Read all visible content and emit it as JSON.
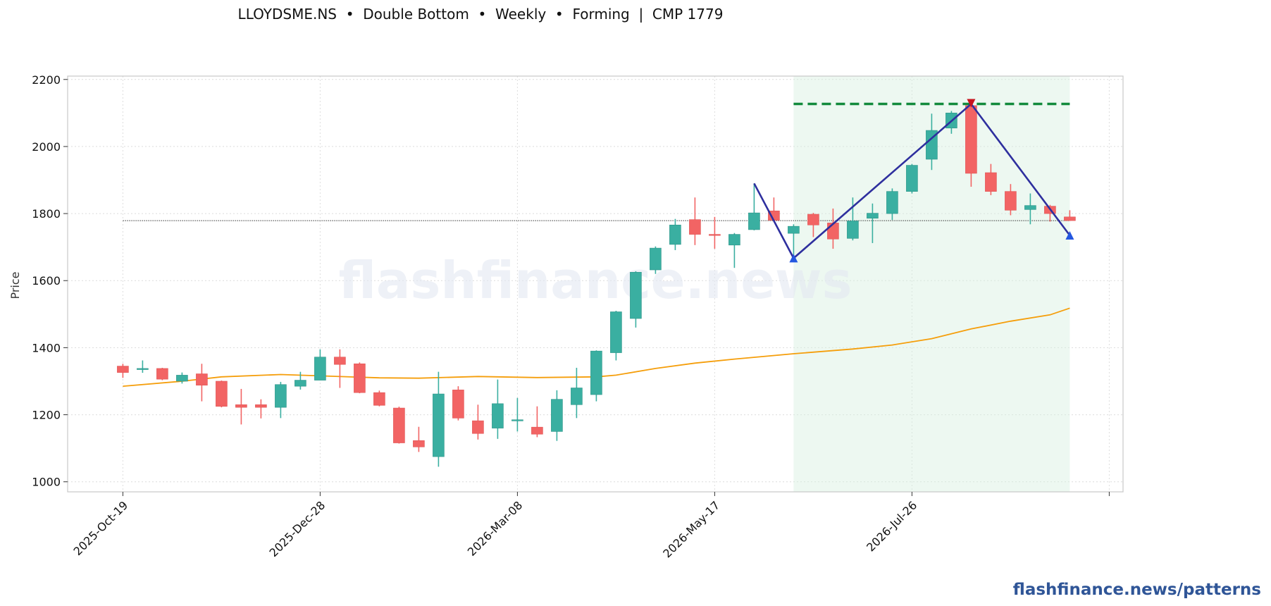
{
  "header": {
    "title": "LLOYDSME.NS  •  Double Bottom  •  Weekly  •  Forming  |  CMP 1779"
  },
  "footer": {
    "brand": "flashfinance.news/patterns"
  },
  "watermark": "flashfinance.news",
  "colors": {
    "up": "#3aafa1",
    "down": "#f26464",
    "ma": "#f59e0b",
    "pattern": "#2e2f9e",
    "neckline": "#138a3c",
    "zone": "#d8efe1",
    "bottom_marker": "#2457e0",
    "top_marker": "#c8141e"
  },
  "chart_data": {
    "type": "candlestick",
    "title": "LLOYDSME.NS  •  Double Bottom  •  Weekly  •  Forming  |  CMP 1779",
    "ylabel": "Price",
    "ylim": [
      970,
      2210
    ],
    "yticks": [
      1000,
      1200,
      1400,
      1600,
      1800,
      2000,
      2200
    ],
    "xtick_labels": [
      "2025-Oct-19",
      "2025-Dec-28",
      "2026-Mar-08",
      "2026-May-17",
      "2026-Jul-26"
    ],
    "xtick_index": [
      0,
      10,
      20,
      30,
      40
    ],
    "x_range": [
      -2.8,
      50.7
    ],
    "grid": true,
    "candles": [
      {
        "date": "2025-Oct-19",
        "o": 1345,
        "h": 1352,
        "l": 1310,
        "c": 1326
      },
      {
        "date": "2025-Oct-26",
        "o": 1336,
        "h": 1362,
        "l": 1325,
        "c": 1338
      },
      {
        "date": "2025-Nov-02",
        "o": 1338,
        "h": 1340,
        "l": 1303,
        "c": 1306
      },
      {
        "date": "2025-Nov-09",
        "o": 1300,
        "h": 1326,
        "l": 1293,
        "c": 1318
      },
      {
        "date": "2025-Nov-16",
        "o": 1322,
        "h": 1352,
        "l": 1240,
        "c": 1288
      },
      {
        "date": "2025-Nov-23",
        "o": 1300,
        "h": 1302,
        "l": 1222,
        "c": 1225
      },
      {
        "date": "2025-Nov-30",
        "o": 1230,
        "h": 1277,
        "l": 1171,
        "c": 1222
      },
      {
        "date": "2025-Dec-07",
        "o": 1230,
        "h": 1246,
        "l": 1189,
        "c": 1222
      },
      {
        "date": "2025-Dec-14",
        "o": 1222,
        "h": 1298,
        "l": 1190,
        "c": 1290
      },
      {
        "date": "2025-Dec-21",
        "o": 1285,
        "h": 1328,
        "l": 1275,
        "c": 1303
      },
      {
        "date": "2025-Dec-28",
        "o": 1303,
        "h": 1395,
        "l": 1303,
        "c": 1372
      },
      {
        "date": "2026-Jan-04",
        "o": 1372,
        "h": 1395,
        "l": 1280,
        "c": 1350
      },
      {
        "date": "2026-Jan-11",
        "o": 1352,
        "h": 1356,
        "l": 1264,
        "c": 1266
      },
      {
        "date": "2026-Jan-18",
        "o": 1266,
        "h": 1272,
        "l": 1225,
        "c": 1228
      },
      {
        "date": "2026-Jan-25",
        "o": 1220,
        "h": 1224,
        "l": 1114,
        "c": 1116
      },
      {
        "date": "2026-Feb-01",
        "o": 1123,
        "h": 1164,
        "l": 1089,
        "c": 1104
      },
      {
        "date": "2026-Feb-08",
        "o": 1075,
        "h": 1328,
        "l": 1045,
        "c": 1262
      },
      {
        "date": "2026-Feb-15",
        "o": 1274,
        "h": 1285,
        "l": 1183,
        "c": 1190
      },
      {
        "date": "2026-Feb-22",
        "o": 1182,
        "h": 1230,
        "l": 1126,
        "c": 1144
      },
      {
        "date": "2026-Mar-01",
        "o": 1160,
        "h": 1305,
        "l": 1128,
        "c": 1233
      },
      {
        "date": "2026-Mar-08",
        "o": 1184,
        "h": 1250,
        "l": 1150,
        "c": 1185
      },
      {
        "date": "2026-Mar-15",
        "o": 1163,
        "h": 1225,
        "l": 1133,
        "c": 1142
      },
      {
        "date": "2026-Mar-22",
        "o": 1150,
        "h": 1273,
        "l": 1122,
        "c": 1246
      },
      {
        "date": "2026-Mar-29",
        "o": 1230,
        "h": 1340,
        "l": 1190,
        "c": 1280
      },
      {
        "date": "2026-Apr-05",
        "o": 1260,
        "h": 1392,
        "l": 1240,
        "c": 1390
      },
      {
        "date": "2026-Apr-12",
        "o": 1385,
        "h": 1510,
        "l": 1362,
        "c": 1507
      },
      {
        "date": "2026-Apr-19",
        "o": 1487,
        "h": 1628,
        "l": 1460,
        "c": 1625
      },
      {
        "date": "2026-Apr-26",
        "o": 1632,
        "h": 1702,
        "l": 1620,
        "c": 1697
      },
      {
        "date": "2026-May-03",
        "o": 1708,
        "h": 1784,
        "l": 1691,
        "c": 1766
      },
      {
        "date": "2026-May-10",
        "o": 1782,
        "h": 1848,
        "l": 1706,
        "c": 1738
      },
      {
        "date": "2026-May-17",
        "o": 1738,
        "h": 1790,
        "l": 1695,
        "c": 1736
      },
      {
        "date": "2026-May-24",
        "o": 1706,
        "h": 1742,
        "l": 1638,
        "c": 1738
      },
      {
        "date": "2026-May-31",
        "o": 1752,
        "h": 1890,
        "l": 1750,
        "c": 1802
      },
      {
        "date": "2026-Jun-07",
        "o": 1808,
        "h": 1848,
        "l": 1776,
        "c": 1780
      },
      {
        "date": "2026-Jun-14",
        "o": 1741,
        "h": 1768,
        "l": 1668,
        "c": 1762
      },
      {
        "date": "2026-Jun-21",
        "o": 1798,
        "h": 1802,
        "l": 1730,
        "c": 1766
      },
      {
        "date": "2026-Jun-28",
        "o": 1772,
        "h": 1815,
        "l": 1695,
        "c": 1724
      },
      {
        "date": "2026-Jul-05",
        "o": 1726,
        "h": 1848,
        "l": 1720,
        "c": 1778
      },
      {
        "date": "2026-Jul-12",
        "o": 1786,
        "h": 1830,
        "l": 1712,
        "c": 1801
      },
      {
        "date": "2026-Jul-19",
        "o": 1800,
        "h": 1875,
        "l": 1781,
        "c": 1866
      },
      {
        "date": "2026-Jul-26",
        "o": 1866,
        "h": 1948,
        "l": 1860,
        "c": 1944
      },
      {
        "date": "2026-Aug-02",
        "o": 1962,
        "h": 2098,
        "l": 1930,
        "c": 2048
      },
      {
        "date": "2026-Aug-09",
        "o": 2055,
        "h": 2106,
        "l": 2038,
        "c": 2100
      },
      {
        "date": "2026-Aug-16",
        "o": 2122,
        "h": 2125,
        "l": 1880,
        "c": 1920
      },
      {
        "date": "2026-Aug-23",
        "o": 1922,
        "h": 1948,
        "l": 1855,
        "c": 1866
      },
      {
        "date": "2026-Aug-30",
        "o": 1866,
        "h": 1888,
        "l": 1795,
        "c": 1810
      },
      {
        "date": "2026-Sep-06",
        "o": 1812,
        "h": 1860,
        "l": 1768,
        "c": 1824
      },
      {
        "date": "2026-Sep-13",
        "o": 1822,
        "h": 1826,
        "l": 1776,
        "c": 1800
      },
      {
        "date": "2026-Sep-20",
        "o": 1790,
        "h": 1810,
        "l": 1778,
        "c": 1779
      }
    ],
    "moving_average": [
      {
        "i": 0,
        "v": 1285
      },
      {
        "i": 3,
        "v": 1300
      },
      {
        "i": 5,
        "v": 1313
      },
      {
        "i": 8,
        "v": 1320
      },
      {
        "i": 10,
        "v": 1316
      },
      {
        "i": 13,
        "v": 1310
      },
      {
        "i": 15,
        "v": 1309
      },
      {
        "i": 18,
        "v": 1314
      },
      {
        "i": 21,
        "v": 1311
      },
      {
        "i": 24,
        "v": 1313
      },
      {
        "i": 25,
        "v": 1318
      },
      {
        "i": 27,
        "v": 1338
      },
      {
        "i": 29,
        "v": 1354
      },
      {
        "i": 31,
        "v": 1366
      },
      {
        "i": 34,
        "v": 1382
      },
      {
        "i": 37,
        "v": 1396
      },
      {
        "i": 39,
        "v": 1408
      },
      {
        "i": 41,
        "v": 1427
      },
      {
        "i": 43,
        "v": 1456
      },
      {
        "i": 45,
        "v": 1479
      },
      {
        "i": 47,
        "v": 1498
      },
      {
        "i": 48,
        "v": 1518
      }
    ],
    "cmp_line": {
      "value": 1779,
      "from": 0,
      "to": 48
    },
    "pattern_zone": {
      "from": 34,
      "to": 48
    },
    "neckline": {
      "value": 2127,
      "from": 34,
      "to": 48
    },
    "pattern_path": [
      {
        "i": 32,
        "v": 1890
      },
      {
        "i": 34,
        "v": 1667
      },
      {
        "i": 43,
        "v": 2127
      },
      {
        "i": 48,
        "v": 1735
      }
    ],
    "markers": [
      {
        "i": 34,
        "v": 1667,
        "kind": "bottom"
      },
      {
        "i": 43,
        "v": 2127,
        "kind": "top"
      },
      {
        "i": 48,
        "v": 1735,
        "kind": "bottom"
      }
    ]
  }
}
